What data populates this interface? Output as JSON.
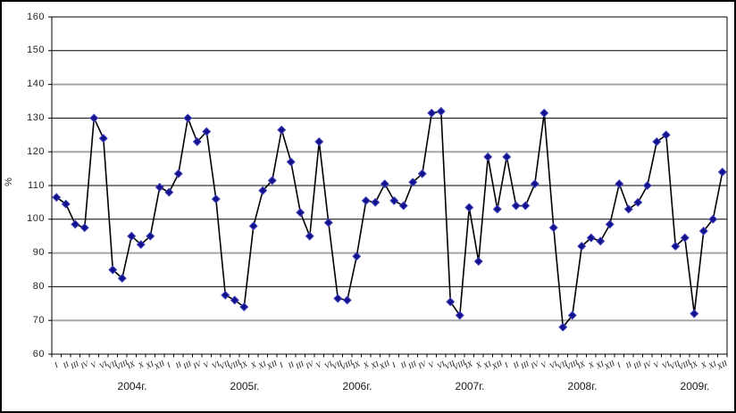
{
  "chart_data": {
    "type": "line",
    "title": "",
    "xlabel": "",
    "ylabel": "%",
    "ylim": [
      60,
      160
    ],
    "ytick_step": 10,
    "yticks": [
      160,
      150,
      140,
      130,
      120,
      110,
      100,
      90,
      80,
      70,
      60
    ],
    "gray_gridlines": [
      140,
      120,
      90,
      70
    ],
    "legend": "none",
    "grid": "horizontal",
    "month_labels": [
      "I",
      "II",
      "III",
      "IV",
      "V",
      "VI",
      "VII",
      "VIII",
      "IX",
      "X",
      "XI",
      "XII"
    ],
    "years": [
      {
        "label": "2004г.",
        "values": [
          106.5,
          104.5,
          98.5,
          97.5,
          130,
          124,
          85,
          82.5,
          95,
          92.5,
          95,
          109.5
        ]
      },
      {
        "label": "2005г.",
        "values": [
          108,
          113.5,
          130,
          123,
          126,
          106,
          77.5,
          76,
          74,
          98,
          108.5,
          111.5
        ]
      },
      {
        "label": "2006г.",
        "values": [
          126.5,
          117,
          102,
          95,
          123,
          99,
          76.5,
          76,
          89,
          105.5,
          105,
          110.5
        ]
      },
      {
        "label": "2007г.",
        "values": [
          105.5,
          104,
          111,
          113.5,
          131.5,
          132,
          75.5,
          71.5,
          103.5,
          87.5,
          118.5,
          103
        ]
      },
      {
        "label": "2008г.",
        "values": [
          118.5,
          104,
          104,
          110.5,
          131.5,
          97.5,
          68,
          71.5,
          92,
          94.5,
          93.5,
          98.5
        ]
      },
      {
        "label": "2009г.",
        "values": [
          110.5,
          103,
          105,
          110,
          123,
          125,
          92,
          94.5,
          72,
          96.5,
          100,
          114
        ]
      }
    ],
    "colors": {
      "line": "#000000",
      "marker_fill": "#12128f",
      "marker_edge": "#4444bb",
      "gridline_black": "#000000",
      "gridline_gray": "#a6a6a6",
      "axis": "#000000",
      "text": "#262626"
    }
  }
}
